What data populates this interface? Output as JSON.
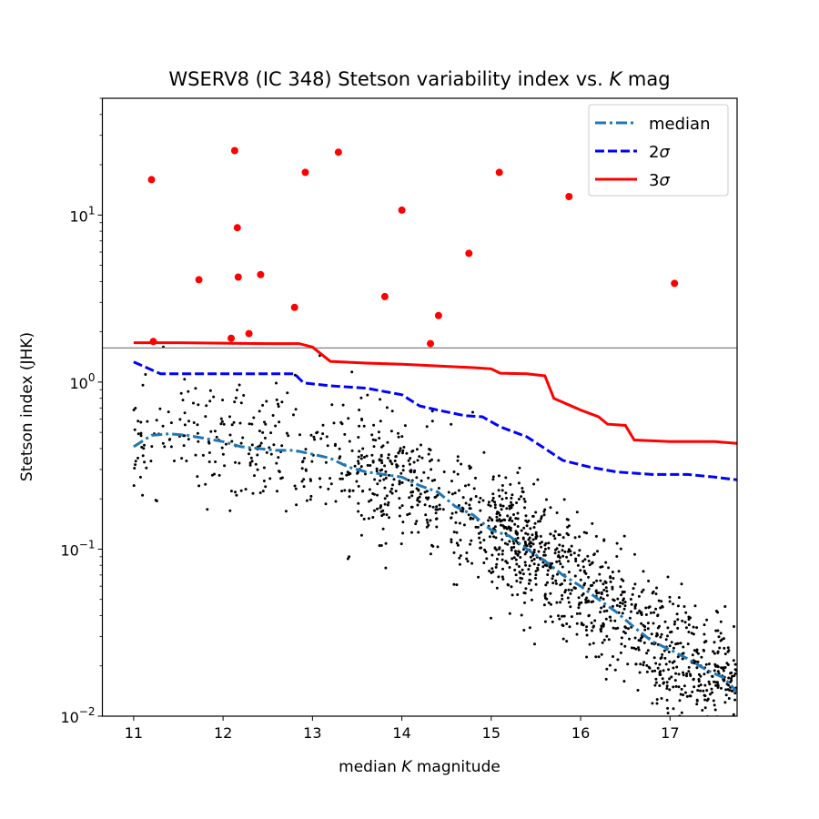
{
  "chart_data": {
    "type": "scatter",
    "title": "WSERV8 (IC 348) Stetson variability index vs. K mag",
    "title_parts": [
      "WSERV8 (IC 348) Stetson variability index vs. ",
      "K",
      " mag"
    ],
    "xlabel": "median K magnitude",
    "xlabel_parts": [
      "median ",
      "K",
      " magnitude"
    ],
    "ylabel": "Stetson index (JHK)",
    "xlim": [
      10.65,
      17.75
    ],
    "ylim": [
      0.01,
      50
    ],
    "yscale": "log",
    "grid": false,
    "legend_position": "top-right",
    "xticks": [
      11,
      12,
      13,
      14,
      15,
      16,
      17
    ],
    "yticks": [
      {
        "value": 0.01,
        "base": "10",
        "exp": "−2"
      },
      {
        "value": 0.1,
        "base": "10",
        "exp": "−1"
      },
      {
        "value": 1,
        "base": "10",
        "exp": "0"
      },
      {
        "value": 10,
        "base": "10",
        "exp": "1"
      }
    ],
    "threshold_line": {
      "y": 1.6,
      "color": "#808080"
    },
    "series": [
      {
        "name": "median",
        "legend_label": "median",
        "style": "dashdot",
        "color": "#1f77b4",
        "x": [
          11.0,
          11.2,
          11.4,
          11.6,
          11.8,
          12.0,
          12.2,
          12.4,
          12.6,
          12.8,
          13.0,
          13.2,
          13.4,
          13.6,
          13.8,
          14.0,
          14.2,
          14.4,
          14.6,
          14.8,
          15.0,
          15.2,
          15.4,
          15.6,
          15.8,
          16.0,
          16.2,
          16.4,
          16.6,
          16.8,
          17.0,
          17.2,
          17.4,
          17.6,
          17.75
        ],
        "y": [
          0.41,
          0.48,
          0.49,
          0.48,
          0.46,
          0.44,
          0.41,
          0.4,
          0.39,
          0.39,
          0.37,
          0.35,
          0.31,
          0.29,
          0.28,
          0.27,
          0.24,
          0.22,
          0.18,
          0.16,
          0.13,
          0.12,
          0.1,
          0.085,
          0.07,
          0.06,
          0.05,
          0.042,
          0.034,
          0.028,
          0.025,
          0.022,
          0.019,
          0.017,
          0.014
        ]
      },
      {
        "name": "2σ",
        "legend_label": "2",
        "legend_symbol": "σ",
        "style": "dashed",
        "color": "#0000ff",
        "x": [
          11.0,
          11.3,
          11.6,
          12.0,
          12.4,
          12.8,
          12.9,
          13.2,
          13.6,
          14.0,
          14.2,
          14.4,
          14.7,
          14.9,
          15.1,
          15.4,
          15.6,
          15.8,
          16.1,
          16.4,
          16.8,
          17.2,
          17.5,
          17.75
        ],
        "y": [
          1.32,
          1.12,
          1.12,
          1.12,
          1.12,
          1.12,
          0.99,
          0.95,
          0.92,
          0.84,
          0.72,
          0.68,
          0.63,
          0.62,
          0.54,
          0.47,
          0.4,
          0.34,
          0.31,
          0.29,
          0.28,
          0.28,
          0.27,
          0.26
        ]
      },
      {
        "name": "3σ",
        "legend_label": "3",
        "legend_symbol": "σ",
        "style": "solid",
        "color": "#ff0000",
        "x": [
          11.0,
          11.5,
          12.0,
          12.5,
          12.85,
          13.0,
          13.2,
          13.6,
          14.0,
          14.4,
          14.8,
          15.0,
          15.1,
          15.4,
          15.6,
          15.7,
          16.0,
          16.2,
          16.3,
          16.5,
          16.6,
          17.0,
          17.5,
          17.75
        ],
        "y": [
          1.72,
          1.72,
          1.71,
          1.7,
          1.7,
          1.62,
          1.33,
          1.3,
          1.28,
          1.25,
          1.22,
          1.2,
          1.13,
          1.12,
          1.09,
          0.8,
          0.68,
          0.62,
          0.56,
          0.55,
          0.45,
          0.44,
          0.44,
          0.43
        ]
      },
      {
        "name": "variables",
        "style": "points",
        "color": "#ff0000",
        "x": [
          11.2,
          11.22,
          11.73,
          12.09,
          12.13,
          12.16,
          12.17,
          12.29,
          12.42,
          12.8,
          12.92,
          13.29,
          13.81,
          14.0,
          14.32,
          14.41,
          14.75,
          15.09,
          15.87,
          17.05
        ],
        "y": [
          16.3,
          1.75,
          4.1,
          1.83,
          24.3,
          8.4,
          4.25,
          1.95,
          4.4,
          2.8,
          18.0,
          23.8,
          3.25,
          10.7,
          1.7,
          2.5,
          5.9,
          18.0,
          12.9,
          3.9
        ]
      }
    ],
    "field_points": {
      "count": 1500,
      "color": "#000000",
      "description_free": true
    }
  }
}
